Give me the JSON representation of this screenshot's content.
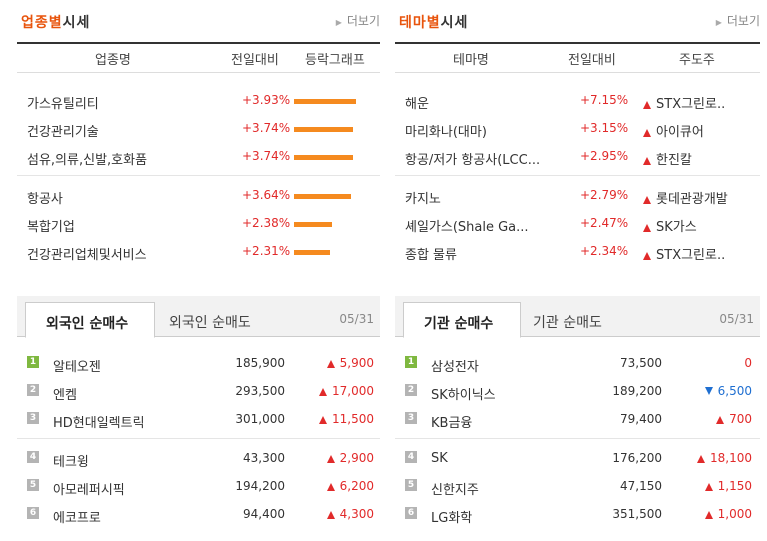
{
  "sector": {
    "title_accent": "업종별",
    "title_rest": "시세",
    "more": "더보기",
    "cols": [
      "업종명",
      "전일대비",
      "등락그래프"
    ],
    "rows": [
      {
        "name": "가스유틸리티",
        "change": "+3.93%",
        "pct": 3.93
      },
      {
        "name": "건강관리기술",
        "change": "+3.74%",
        "pct": 3.74
      },
      {
        "name": "섬유,의류,신발,호화품",
        "change": "+3.74%",
        "pct": 3.74
      },
      {
        "name": "항공사",
        "change": "+3.64%",
        "pct": 3.64
      },
      {
        "name": "복합기업",
        "change": "+2.38%",
        "pct": 2.38
      },
      {
        "name": "건강관리업체및서비스",
        "change": "+2.31%",
        "pct": 2.31
      }
    ]
  },
  "theme": {
    "title_accent": "테마별",
    "title_rest": "시세",
    "more": "더보기",
    "cols": [
      "테마명",
      "전일대비",
      "주도주"
    ],
    "rows": [
      {
        "name": "해운",
        "change": "+7.15%",
        "leader": "STX그린로.."
      },
      {
        "name": "마리화나(대마)",
        "change": "+3.15%",
        "leader": "아이큐어"
      },
      {
        "name": "항공/저가 항공사(LCC...",
        "change": "+2.95%",
        "leader": "한진칼"
      },
      {
        "name": "카지노",
        "change": "+2.79%",
        "leader": "롯데관광개발"
      },
      {
        "name": "셰일가스(Shale Ga...",
        "change": "+2.47%",
        "leader": "SK가스"
      },
      {
        "name": "종합 물류",
        "change": "+2.34%",
        "leader": "STX그린로.."
      }
    ]
  },
  "foreign": {
    "tab_active": "외국인 순매수",
    "tab_inactive": "외국인 순매도",
    "date": "05/31",
    "rows": [
      {
        "rank": "1",
        "name": "알테오젠",
        "price": "185,900",
        "change": "5,900",
        "dir": "up"
      },
      {
        "rank": "2",
        "name": "엔켐",
        "price": "293,500",
        "change": "17,000",
        "dir": "up"
      },
      {
        "rank": "3",
        "name": "HD현대일렉트릭",
        "price": "301,000",
        "change": "11,500",
        "dir": "up"
      },
      {
        "rank": "4",
        "name": "테크윙",
        "price": "43,300",
        "change": "2,900",
        "dir": "up"
      },
      {
        "rank": "5",
        "name": "아모레퍼시픽",
        "price": "194,200",
        "change": "6,200",
        "dir": "up"
      },
      {
        "rank": "6",
        "name": "에코프로",
        "price": "94,400",
        "change": "4,300",
        "dir": "up"
      }
    ]
  },
  "institution": {
    "tab_active": "기관 순매수",
    "tab_inactive": "기관 순매도",
    "date": "05/31",
    "rows": [
      {
        "rank": "1",
        "name": "삼성전자",
        "price": "73,500",
        "change": "0",
        "dir": "flat"
      },
      {
        "rank": "2",
        "name": "SK하이닉스",
        "price": "189,200",
        "change": "6,500",
        "dir": "down"
      },
      {
        "rank": "3",
        "name": "KB금융",
        "price": "79,400",
        "change": "700",
        "dir": "up"
      },
      {
        "rank": "4",
        "name": "SK",
        "price": "176,200",
        "change": "18,100",
        "dir": "up"
      },
      {
        "rank": "5",
        "name": "신한지주",
        "price": "47,150",
        "change": "1,150",
        "dir": "up"
      },
      {
        "rank": "6",
        "name": "LG화학",
        "price": "351,500",
        "change": "1,000",
        "dir": "up"
      }
    ]
  },
  "colors": {
    "accent": "#e8540c",
    "up": "#e12a2a",
    "down": "#1f6fd1",
    "bar": "#f58a1f"
  }
}
